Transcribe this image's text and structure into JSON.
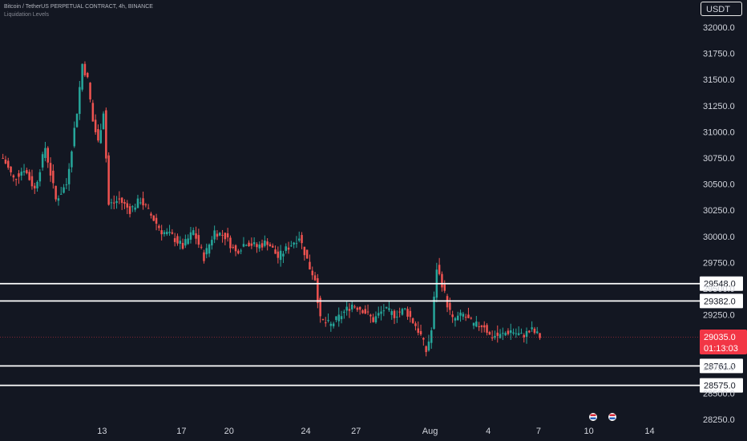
{
  "header": {
    "title": "Bitcoin / TetherUS PERPETUAL CONTRACT, 4h, BINANCE",
    "indicator": "Liquidation Levels",
    "currency": "USDT"
  },
  "price_tag": {
    "price": "29035.0",
    "countdown": "01:13:03",
    "color": "#f23645"
  },
  "colors": {
    "background": "#131722",
    "up": "#26a69a",
    "down": "#ef5350",
    "level_line": "#ffffff"
  },
  "chart_data": {
    "type": "candlestick",
    "title": "Bitcoin / TetherUS PERPETUAL CONTRACT, 4h, BINANCE",
    "ylim": [
      28200,
      32100
    ],
    "y_ticks": [
      28250,
      28500,
      28750,
      29000,
      29250,
      29500,
      29750,
      30000,
      30250,
      30500,
      30750,
      31000,
      31250,
      31500,
      31750,
      32000
    ],
    "y_tick_labels": [
      "28250.0",
      "28500.0",
      "28750.0",
      "29000.0",
      "29250.0",
      "29500.0",
      "29750.0",
      "30000.0",
      "30250.0",
      "30500.0",
      "30750.0",
      "31000.0",
      "31250.0",
      "31500.0",
      "31750.0",
      "32000.0"
    ],
    "x_tick_labels": [
      "13",
      "17",
      "20",
      "24",
      "27",
      "Aug",
      "4",
      "7",
      "10",
      "14"
    ],
    "x_tick_index": [
      38,
      68,
      86,
      115,
      134,
      162,
      184,
      203,
      222,
      245
    ],
    "liquidation_levels": [
      29548.0,
      29382.0,
      28761.0,
      28575.0
    ],
    "level_labels": [
      "29548.0",
      "29382.0",
      "28761.0",
      "28575.0"
    ],
    "last_price": 29035.0,
    "key_points": [
      [
        0,
        30750
      ],
      [
        4,
        30550
      ],
      [
        8,
        30650
      ],
      [
        12,
        30450
      ],
      [
        16,
        30850
      ],
      [
        20,
        30350
      ],
      [
        24,
        30500
      ],
      [
        28,
        31200
      ],
      [
        30,
        31650
      ],
      [
        32,
        31500
      ],
      [
        34,
        31100
      ],
      [
        36,
        30900
      ],
      [
        38,
        31200
      ],
      [
        40,
        30300
      ],
      [
        44,
        30350
      ],
      [
        48,
        30250
      ],
      [
        52,
        30350
      ],
      [
        56,
        30200
      ],
      [
        60,
        30050
      ],
      [
        64,
        30000
      ],
      [
        68,
        29900
      ],
      [
        72,
        30050
      ],
      [
        76,
        29800
      ],
      [
        80,
        30050
      ],
      [
        84,
        30000
      ],
      [
        88,
        29850
      ],
      [
        92,
        29950
      ],
      [
        96,
        29900
      ],
      [
        100,
        29950
      ],
      [
        104,
        29800
      ],
      [
        108,
        29900
      ],
      [
        112,
        30000
      ],
      [
        116,
        29700
      ],
      [
        118,
        29600
      ],
      [
        120,
        29200
      ],
      [
        124,
        29150
      ],
      [
        128,
        29250
      ],
      [
        132,
        29350
      ],
      [
        136,
        29300
      ],
      [
        140,
        29200
      ],
      [
        144,
        29300
      ],
      [
        148,
        29250
      ],
      [
        152,
        29300
      ],
      [
        156,
        29150
      ],
      [
        158,
        29050
      ],
      [
        160,
        28900
      ],
      [
        162,
        29100
      ],
      [
        164,
        29700
      ],
      [
        166,
        29550
      ],
      [
        168,
        29350
      ],
      [
        170,
        29200
      ],
      [
        174,
        29250
      ],
      [
        178,
        29150
      ],
      [
        182,
        29150
      ],
      [
        184,
        29050
      ],
      [
        188,
        29050
      ],
      [
        192,
        29100
      ],
      [
        196,
        29050
      ],
      [
        200,
        29100
      ],
      [
        203,
        29040
      ]
    ],
    "events": [
      "10",
      "11"
    ]
  }
}
